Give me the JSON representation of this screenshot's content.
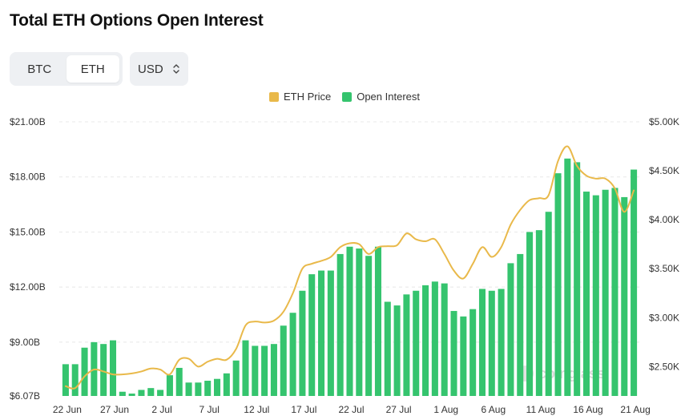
{
  "title": "Total ETH Options Open Interest",
  "asset_toggle": {
    "options": [
      "BTC",
      "ETH"
    ],
    "selected": "ETH"
  },
  "currency": {
    "label": "USD"
  },
  "colors": {
    "oi": "#35c46e",
    "price": "#e9b94a",
    "grid": "#e8e8e8"
  },
  "chart_data": {
    "type": "bar",
    "title": "Total ETH Options Open Interest",
    "legend": [
      "ETH Price",
      "Open Interest"
    ],
    "legend_position": "top-center",
    "x_tick_labels": [
      "22 Jun",
      "27 Jun",
      "2 Jul",
      "7 Jul",
      "12 Jul",
      "17 Jul",
      "22 Jul",
      "27 Jul",
      "1 Aug",
      "6 Aug",
      "11 Aug",
      "16 Aug",
      "21 Aug"
    ],
    "left_axis": {
      "ticks": [
        "$6.07B",
        "$9.00B",
        "$12.00B",
        "$15.00B",
        "$18.00B",
        "$21.00B"
      ],
      "tick_values": [
        6.07,
        9,
        12,
        15,
        18,
        21
      ],
      "range": [
        6.07,
        21
      ]
    },
    "right_axis": {
      "ticks": [
        "$2.50K",
        "$3.00K",
        "$3.50K",
        "$4.00K",
        "$4.50K",
        "$5.00K"
      ],
      "tick_values": [
        2.5,
        3.0,
        3.5,
        4.0,
        4.5,
        5.0
      ],
      "range": [
        2.2,
        5.0
      ]
    },
    "grid": true,
    "series": [
      {
        "name": "Open Interest",
        "unit": "billion USD",
        "values": [
          7.8,
          7.8,
          8.7,
          9.0,
          8.9,
          9.1,
          6.3,
          6.2,
          6.4,
          6.5,
          6.4,
          7.2,
          7.6,
          6.8,
          6.8,
          6.9,
          7.0,
          7.3,
          8.0,
          9.1,
          8.8,
          8.8,
          8.9,
          9.9,
          10.6,
          11.8,
          12.7,
          12.9,
          12.9,
          13.8,
          14.2,
          14.1,
          13.7,
          14.2,
          11.2,
          11.0,
          11.6,
          11.8,
          12.1,
          12.3,
          12.2,
          10.7,
          10.4,
          10.8,
          11.9,
          11.8,
          11.9,
          13.3,
          13.8,
          15.0,
          15.1,
          16.1,
          18.2,
          19.0,
          18.8,
          17.2,
          17.0,
          17.3,
          17.4,
          16.9,
          18.4
        ]
      },
      {
        "name": "ETH Price",
        "unit": "thousand USD",
        "values": [
          2.3,
          2.28,
          2.4,
          2.47,
          2.45,
          2.42,
          2.42,
          2.43,
          2.45,
          2.48,
          2.47,
          2.42,
          2.57,
          2.58,
          2.5,
          2.55,
          2.58,
          2.57,
          2.68,
          2.92,
          2.96,
          2.95,
          2.97,
          3.06,
          3.25,
          3.5,
          3.55,
          3.58,
          3.62,
          3.72,
          3.76,
          3.75,
          3.65,
          3.72,
          3.73,
          3.74,
          3.86,
          3.8,
          3.78,
          3.8,
          3.65,
          3.48,
          3.4,
          3.55,
          3.72,
          3.62,
          3.72,
          3.95,
          4.1,
          4.2,
          4.22,
          4.25,
          4.6,
          4.75,
          4.55,
          4.45,
          4.42,
          4.42,
          4.32,
          4.08,
          4.3
        ]
      }
    ],
    "watermark": "coinglass"
  }
}
